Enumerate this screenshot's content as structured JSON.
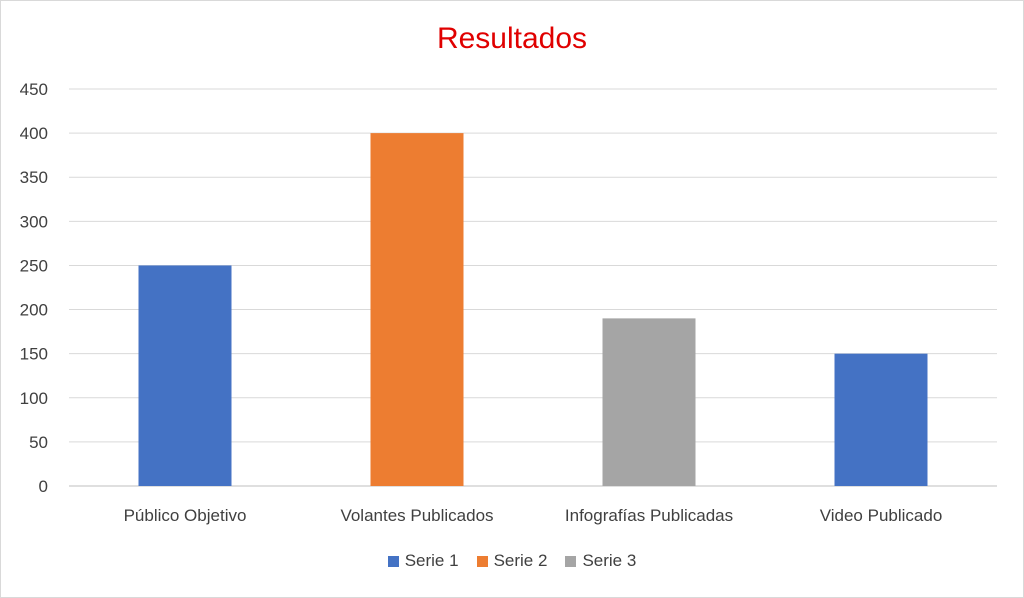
{
  "chart_data": {
    "type": "bar",
    "title": "Resultados",
    "categories": [
      "Público Objetivo",
      "Volantes Publicados",
      "Infografías Publicadas",
      "Video Publicado"
    ],
    "values": [
      250,
      400,
      190,
      150
    ],
    "bar_series": [
      "Serie 1",
      "Serie 2",
      "Serie 3",
      "Serie 1"
    ],
    "series": [
      {
        "name": "Serie 1",
        "color": "#4472c4"
      },
      {
        "name": "Serie 2",
        "color": "#ed7d31"
      },
      {
        "name": "Serie 3",
        "color": "#a5a5a5"
      }
    ],
    "ylim": [
      0,
      450
    ],
    "yticks": [
      0,
      50,
      100,
      150,
      200,
      250,
      300,
      350,
      400,
      450
    ],
    "grid": true,
    "legend_position": "bottom",
    "title_color": "#e00000"
  }
}
